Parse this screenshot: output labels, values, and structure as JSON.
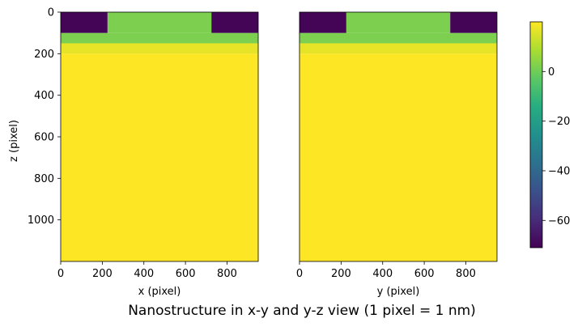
{
  "figure": {
    "title": "Nanostructure in x-y and y-z view (1 pixel = 1 nm)"
  },
  "chart_data": [
    {
      "type": "heatmap",
      "xlabel": "x (pixel)",
      "ylabel": "z (pixel)",
      "xlim": [
        0,
        950
      ],
      "ylim": [
        1200,
        0
      ],
      "xticks": [
        0,
        200,
        400,
        600,
        800
      ],
      "yticks": [
        0,
        200,
        400,
        600,
        800,
        1000
      ],
      "regions": [
        {
          "x": [
            0,
            950
          ],
          "z": [
            200,
            1200
          ],
          "value": 20
        },
        {
          "x": [
            0,
            950
          ],
          "z": [
            150,
            200
          ],
          "value": 17
        },
        {
          "x": [
            0,
            950
          ],
          "z": [
            100,
            150
          ],
          "value": 2
        },
        {
          "x": [
            225,
            725
          ],
          "z": [
            0,
            100
          ],
          "value": 2
        },
        {
          "x": [
            0,
            225
          ],
          "z": [
            0,
            100
          ],
          "value": -70
        },
        {
          "x": [
            725,
            950
          ],
          "z": [
            0,
            100
          ],
          "value": -70
        }
      ]
    },
    {
      "type": "heatmap",
      "xlabel": "y (pixel)",
      "ylabel": "",
      "xlim": [
        0,
        950
      ],
      "ylim": [
        1200,
        0
      ],
      "xticks": [
        0,
        200,
        400,
        600,
        800
      ],
      "yticks": [],
      "regions": [
        {
          "x": [
            0,
            950
          ],
          "z": [
            200,
            1200
          ],
          "value": 20
        },
        {
          "x": [
            0,
            950
          ],
          "z": [
            150,
            200
          ],
          "value": 17
        },
        {
          "x": [
            0,
            950
          ],
          "z": [
            100,
            150
          ],
          "value": 2
        },
        {
          "x": [
            225,
            725
          ],
          "z": [
            0,
            100
          ],
          "value": 2
        },
        {
          "x": [
            0,
            225
          ],
          "z": [
            0,
            100
          ],
          "value": -70
        },
        {
          "x": [
            725,
            950
          ],
          "z": [
            0,
            100
          ],
          "value": -70
        }
      ]
    }
  ],
  "colorbar": {
    "colormap": "viridis",
    "min": -71,
    "max": 20,
    "ticks": [
      0,
      -20,
      -40,
      -60
    ],
    "tick_labels": [
      "0",
      "−20",
      "−40",
      "−60"
    ]
  }
}
